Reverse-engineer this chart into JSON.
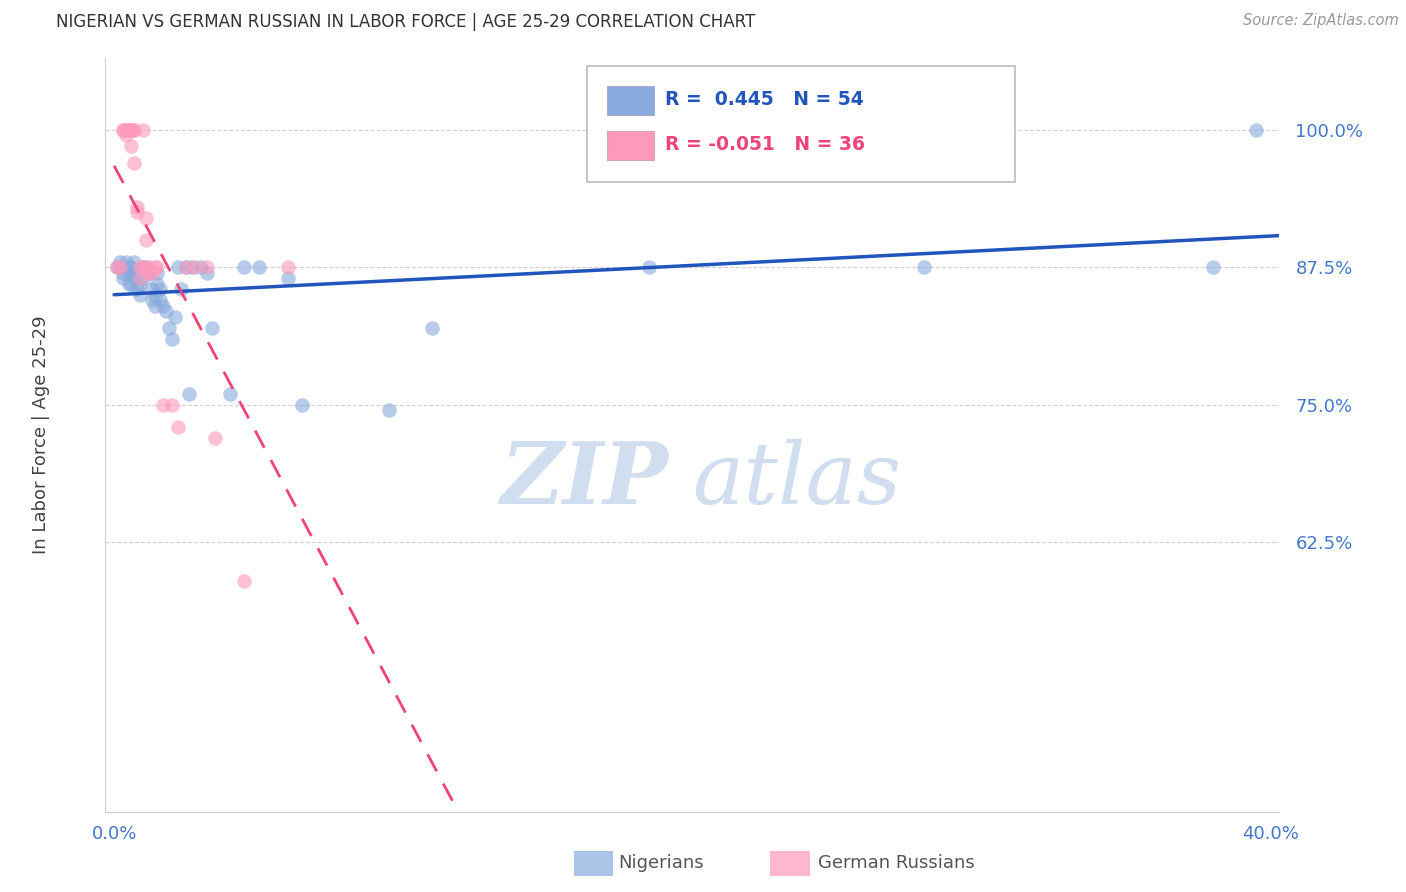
{
  "title": "NIGERIAN VS GERMAN RUSSIAN IN LABOR FORCE | AGE 25-29 CORRELATION CHART",
  "source": "Source: ZipAtlas.com",
  "ylabel": "In Labor Force | Age 25-29",
  "xlim": [
    -0.003,
    0.403
  ],
  "ylim": [
    0.38,
    1.065
  ],
  "yticks": [
    0.625,
    0.75,
    0.875,
    1.0
  ],
  "ytick_labels": [
    "62.5%",
    "75.0%",
    "87.5%",
    "100.0%"
  ],
  "xtick_vals": [
    0.0,
    0.05,
    0.1,
    0.15,
    0.2,
    0.25,
    0.3,
    0.35,
    0.4
  ],
  "blue_color": "#88AADD",
  "pink_color": "#FF99BB",
  "blue_line_color": "#2255BB",
  "pink_line_color": "#EE4477",
  "watermark_color": "#D0DEF0",
  "tick_label_color": "#4477CC",
  "title_color": "#333333",
  "source_color": "#999999",
  "nigerian_x": [
    0.001,
    0.002,
    0.002,
    0.003,
    0.003,
    0.004,
    0.005,
    0.005,
    0.005,
    0.006,
    0.006,
    0.006,
    0.007,
    0.007,
    0.008,
    0.008,
    0.009,
    0.009,
    0.01,
    0.01,
    0.011,
    0.012,
    0.013,
    0.013,
    0.014,
    0.014,
    0.015,
    0.015,
    0.016,
    0.016,
    0.017,
    0.018,
    0.019,
    0.02,
    0.021,
    0.022,
    0.023,
    0.025,
    0.026,
    0.027,
    0.03,
    0.032,
    0.034,
    0.04,
    0.045,
    0.05,
    0.06,
    0.065,
    0.095,
    0.11,
    0.185,
    0.28,
    0.38,
    0.395
  ],
  "nigerian_y": [
    0.875,
    0.875,
    0.88,
    0.87,
    0.865,
    0.88,
    0.875,
    0.87,
    0.86,
    0.875,
    0.87,
    0.86,
    0.88,
    0.865,
    0.87,
    0.855,
    0.86,
    0.85,
    0.875,
    0.865,
    0.875,
    0.87,
    0.855,
    0.845,
    0.85,
    0.84,
    0.87,
    0.86,
    0.855,
    0.845,
    0.84,
    0.835,
    0.82,
    0.81,
    0.83,
    0.875,
    0.855,
    0.875,
    0.76,
    0.875,
    0.875,
    0.87,
    0.82,
    0.76,
    0.875,
    0.875,
    0.865,
    0.75,
    0.745,
    0.82,
    0.875,
    0.875,
    0.875,
    1.0
  ],
  "german_russian_x": [
    0.001,
    0.002,
    0.003,
    0.003,
    0.004,
    0.004,
    0.004,
    0.005,
    0.005,
    0.006,
    0.006,
    0.007,
    0.007,
    0.007,
    0.008,
    0.008,
    0.009,
    0.009,
    0.01,
    0.01,
    0.011,
    0.011,
    0.012,
    0.012,
    0.013,
    0.014,
    0.015,
    0.017,
    0.02,
    0.022,
    0.025,
    0.028,
    0.032,
    0.035,
    0.045,
    0.06
  ],
  "german_russian_y": [
    0.875,
    0.875,
    1.0,
    1.0,
    1.0,
    1.0,
    0.995,
    1.0,
    1.0,
    1.0,
    0.985,
    1.0,
    1.0,
    0.97,
    0.93,
    0.925,
    0.875,
    0.865,
    0.875,
    1.0,
    0.92,
    0.9,
    0.875,
    0.87,
    0.87,
    0.875,
    0.875,
    0.75,
    0.75,
    0.73,
    0.875,
    0.875,
    0.875,
    0.72,
    0.59,
    0.875
  ],
  "legend_text_blue": "R =  0.445   N = 54",
  "legend_text_pink": "R = -0.051   N = 36",
  "bottom_label_nigerians": "Nigerians",
  "bottom_label_german": "German Russians"
}
